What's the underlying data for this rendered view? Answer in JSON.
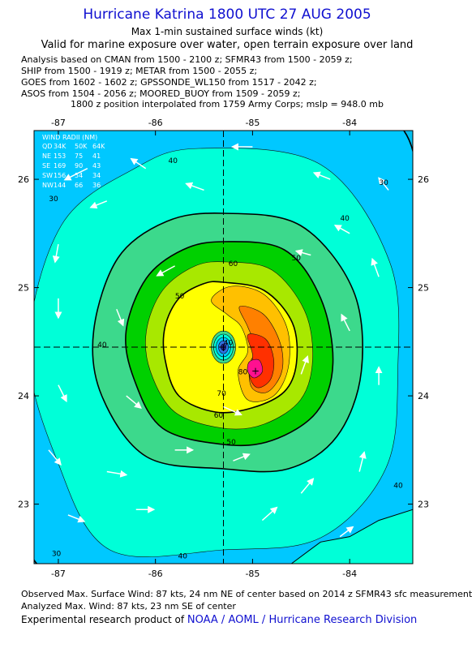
{
  "header": {
    "title": "Hurricane Katrina 1800 UTC 27 AUG 2005",
    "subtitle": "Max 1-min sustained surface winds (kt)",
    "valid": "Valid for marine exposure over water, open terrain exposure over land"
  },
  "sources": [
    "Analysis based on  CMAN from 1500 - 2100 z;  SFMR43 from 1500 - 2059 z;",
    "SHIP from 1500 - 1919 z;  METAR from 1500 - 2055 z;",
    "GOES from 1602 - 1602 z;  GPSSONDE_WL150 from 1517 - 2042 z;",
    "ASOS from 1504 - 2056 z;  MOORED_BUOY from 1509 - 2059 z;"
  ],
  "interpolation_note": "1800 z position interpolated from 1759 Army Corps; mslp = 948.0 mb",
  "wind_radii": {
    "heading": "WIND RADII (NM)",
    "columns": [
      "QD",
      "34K",
      "50K",
      "64K"
    ],
    "rows": [
      [
        "NE",
        "153",
        "75",
        "41"
      ],
      [
        "SE",
        "169",
        "90",
        "43"
      ],
      [
        "SW",
        "156",
        "54",
        "34"
      ],
      [
        "NW",
        "144",
        "66",
        "36"
      ]
    ]
  },
  "chart_data": {
    "type": "contour",
    "xlabel": "",
    "ylabel": "",
    "x_ticks": [
      "-87",
      "-86",
      "-85",
      "-84"
    ],
    "x_tick_values": [
      -87,
      -86,
      -85,
      -84
    ],
    "y_ticks": [
      "23",
      "24",
      "25",
      "26"
    ],
    "y_tick_values": [
      23,
      24,
      25,
      26
    ],
    "xlim": [
      -87.25,
      -83.35
    ],
    "ylim": [
      22.45,
      26.45
    ],
    "center": {
      "lon": -85.3,
      "lat": 24.45
    },
    "max_wind_marker": {
      "lon": -84.97,
      "lat": 24.23
    },
    "contour_levels_kt": [
      30,
      40,
      50,
      60,
      70,
      80,
      90
    ],
    "contour_labels": [
      {
        "text": "30",
        "lon": -83.65,
        "lat": 25.95
      },
      {
        "text": "30",
        "lon": -87.05,
        "lat": 25.8
      },
      {
        "text": "30",
        "lon": -87.02,
        "lat": 22.52
      },
      {
        "text": "40",
        "lon": -86.55,
        "lat": 24.45
      },
      {
        "text": "40",
        "lon": -85.82,
        "lat": 26.15
      },
      {
        "text": "40",
        "lon": -84.05,
        "lat": 25.62
      },
      {
        "text": "40",
        "lon": -83.5,
        "lat": 23.15
      },
      {
        "text": "40",
        "lon": -85.72,
        "lat": 22.5
      },
      {
        "text": "50",
        "lon": -85.75,
        "lat": 24.9
      },
      {
        "text": "50",
        "lon": -84.55,
        "lat": 25.25
      },
      {
        "text": "50",
        "lon": -85.22,
        "lat": 23.55
      },
      {
        "text": "60",
        "lon": -85.2,
        "lat": 25.2
      },
      {
        "text": "60",
        "lon": -85.35,
        "lat": 23.8
      },
      {
        "text": "70",
        "lon": -85.32,
        "lat": 24.0
      },
      {
        "text": "80",
        "lon": -85.1,
        "lat": 24.2
      },
      {
        "text": "40",
        "lon": -85.25,
        "lat": 24.47
      }
    ],
    "colors": {
      "30": "#00c8ff",
      "40": "#00ffd8",
      "50": "#3cd98c",
      "60": "#00d000",
      "70": "#a8e800",
      "80": "#ffff00",
      "90": "#ffc000",
      "100": "#ff8000",
      "110": "#ff3000",
      "120": "#ff1090",
      "below": "#00c0f0",
      "eye": "#202090"
    }
  },
  "footer": {
    "observed": "Observed Max. Surface Wind: 87 kts, 24 nm NE of center based on 2014 z SFMR43 sfc measurement",
    "analyzed": "Analyzed Max. Wind: 87 kts, 23 nm SE of center",
    "credit_prefix": "Experimental research product of ",
    "credit_org": "NOAA / AOML / Hurricane Research Division"
  }
}
